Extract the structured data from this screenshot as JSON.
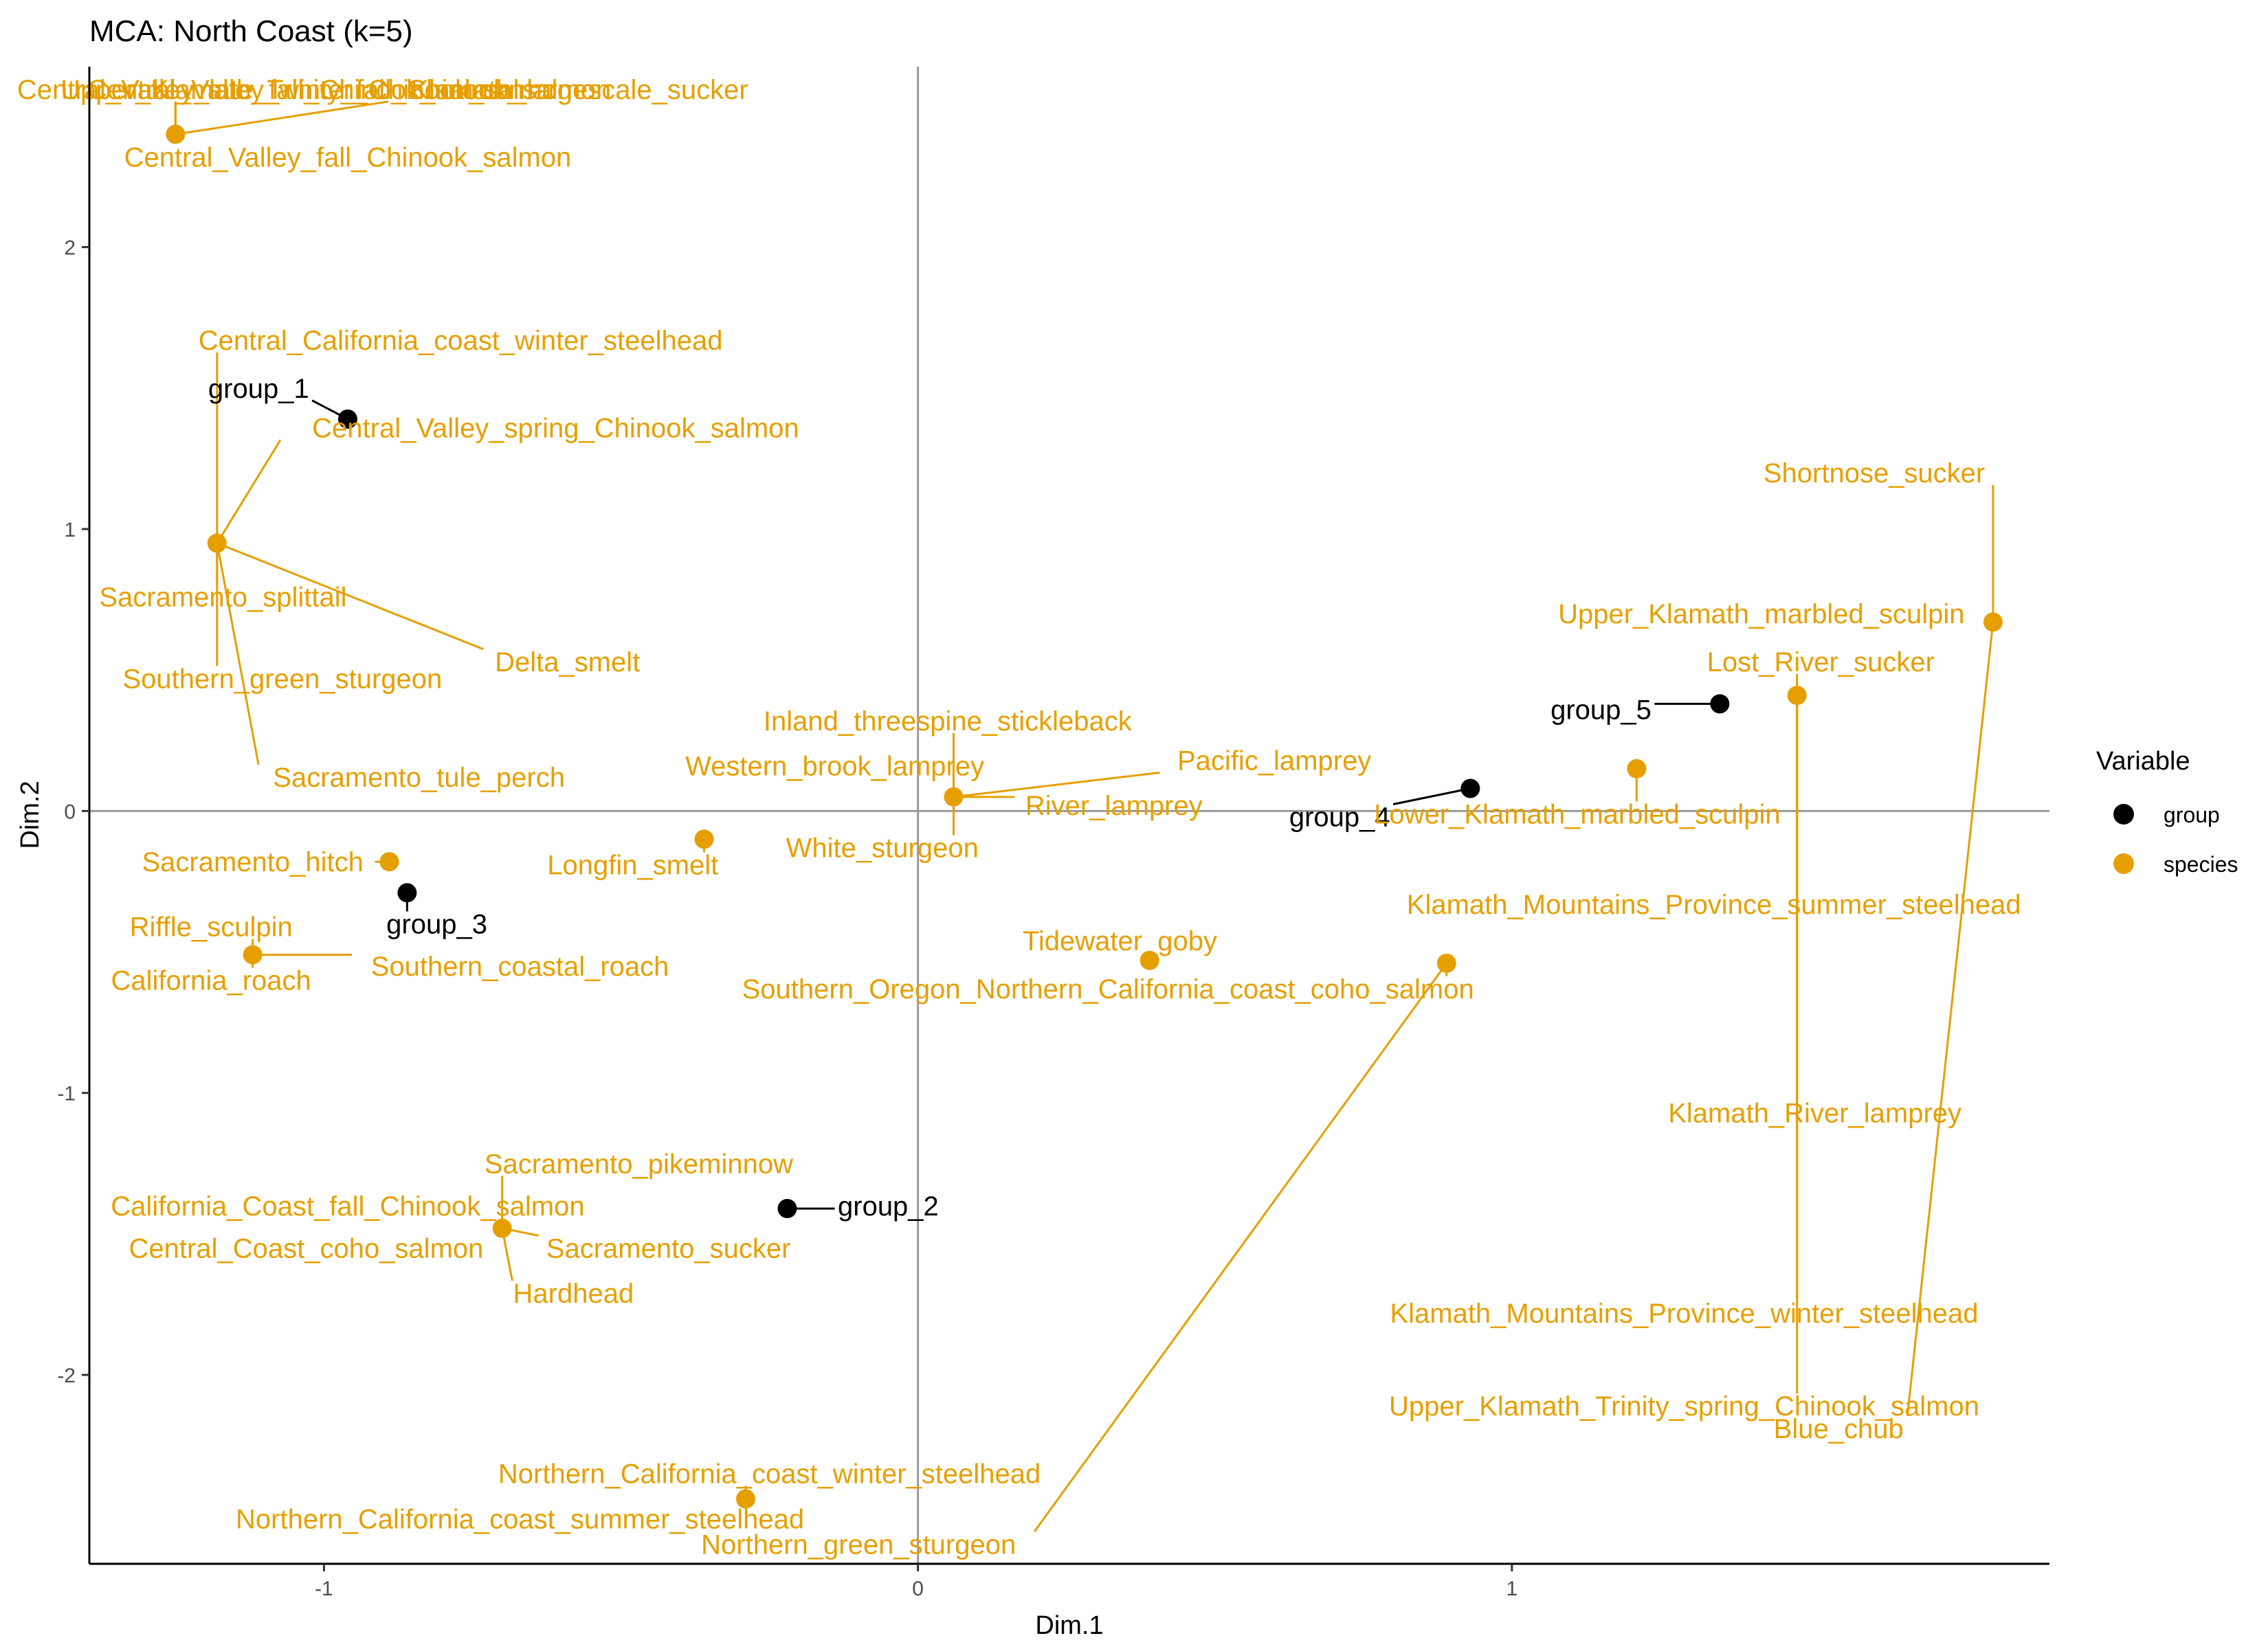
{
  "chart_data": {
    "type": "scatter",
    "title": "MCA: North Coast (k=5)",
    "xlabel": "Dim.1",
    "ylabel": "Dim.2",
    "xlim": [
      -1.395,
      1.905
    ],
    "ylim": [
      -2.67,
      2.64
    ],
    "x_ticks": [
      -1,
      0,
      1
    ],
    "x_tick_labels": [
      "-1",
      "0",
      "1"
    ],
    "y_ticks": [
      -2,
      -1,
      0,
      1,
      2
    ],
    "y_tick_labels": [
      "-2",
      "-1",
      "0",
      "1",
      "2"
    ],
    "reference_lines": {
      "x": 0,
      "y": 0
    },
    "grid": false,
    "legend": {
      "title": "Variable",
      "position": "right",
      "entries": [
        {
          "name": "group",
          "color": "#000000"
        },
        {
          "name": "species",
          "color": "#E69F00"
        }
      ]
    },
    "series": [
      {
        "name": "group",
        "color": "#000000",
        "points": [
          {
            "x": -0.96,
            "y": 1.39,
            "label": "group_1",
            "lx": -1.11,
            "ly": 1.5
          },
          {
            "x": -0.22,
            "y": -1.41,
            "label": "group_2",
            "lx": -0.05,
            "ly": -1.4
          },
          {
            "x": -0.86,
            "y": -0.29,
            "label": "group_3",
            "lx": -0.81,
            "ly": -0.4
          },
          {
            "x": 0.93,
            "y": 0.08,
            "label": "group_4",
            "lx": 0.71,
            "ly": -0.02
          },
          {
            "x": 1.35,
            "y": 0.38,
            "label": "group_5",
            "lx": 1.15,
            "ly": 0.36
          }
        ]
      },
      {
        "name": "species",
        "color": "#E69F00",
        "points": [
          {
            "x": -1.25,
            "y": 2.4,
            "label": "Central_Valley_fall_Chinook_salmon",
            "lx": -0.96,
            "ly": 2.32
          },
          {
            "x": -1.25,
            "y": 2.4,
            "label": "Central_Valley_late_fall_Chinook_salmon",
            "lx": -1.09,
            "ly": 2.56
          },
          {
            "x": -1.25,
            "y": 2.4,
            "label": "Upper_Klamath_Trinity_fall_Chinook_salmon",
            "lx": -0.98,
            "ly": 2.56
          },
          {
            "x": -1.25,
            "y": 2.4,
            "label": "Central_Valley_winter_Chinook_salmon",
            "lx": -0.99,
            "ly": 2.56
          },
          {
            "x": -1.25,
            "y": 2.4,
            "label": "Klamath_largescale_sucker",
            "lx": -0.57,
            "ly": 2.56
          },
          {
            "x": -1.18,
            "y": 0.95,
            "label": "Central_California_coast_winter_steelhead",
            "lx": -0.77,
            "ly": 1.67
          },
          {
            "x": -1.18,
            "y": 0.95,
            "label": "Central_Valley_spring_Chinook_salmon",
            "lx": -0.61,
            "ly": 1.36
          },
          {
            "x": -1.18,
            "y": 0.95,
            "label": "Sacramento_splittail",
            "lx": -1.17,
            "ly": 0.76
          },
          {
            "x": -1.18,
            "y": 0.95,
            "label": "Southern_green_sturgeon",
            "lx": -1.07,
            "ly": 0.47
          },
          {
            "x": -1.18,
            "y": 0.95,
            "label": "Delta_smelt",
            "lx": -0.59,
            "ly": 0.53
          },
          {
            "x": -1.18,
            "y": 0.95,
            "label": "Sacramento_tule_perch",
            "lx": -0.84,
            "ly": 0.12
          },
          {
            "x": 0.06,
            "y": 0.05,
            "label": "Inland_threespine_stickleback",
            "lx": 0.05,
            "ly": 0.32
          },
          {
            "x": 0.06,
            "y": 0.05,
            "label": "Western_brook_lamprey",
            "lx": -0.14,
            "ly": 0.16
          },
          {
            "x": 0.06,
            "y": 0.05,
            "label": "Pacific_lamprey",
            "lx": 0.6,
            "ly": 0.18
          },
          {
            "x": 0.06,
            "y": 0.05,
            "label": "River_lamprey",
            "lx": 0.33,
            "ly": 0.02
          },
          {
            "x": 0.06,
            "y": 0.05,
            "label": "White_sturgeon",
            "lx": -0.06,
            "ly": -0.13
          },
          {
            "x": -0.36,
            "y": -0.1,
            "label": "Longfin_smelt",
            "lx": -0.48,
            "ly": -0.19
          },
          {
            "x": -0.89,
            "y": -0.18,
            "label": "Sacramento_hitch",
            "lx": -1.12,
            "ly": -0.18
          },
          {
            "x": -1.12,
            "y": -0.51,
            "label": "Riffle_sculpin",
            "lx": -1.19,
            "ly": -0.41
          },
          {
            "x": -1.12,
            "y": -0.51,
            "label": "California_roach",
            "lx": -1.19,
            "ly": -0.6
          },
          {
            "x": -1.12,
            "y": -0.51,
            "label": "Southern_coastal_roach",
            "lx": -0.67,
            "ly": -0.55
          },
          {
            "x": 0.39,
            "y": -0.53,
            "label": "Tidewater_goby",
            "lx": 0.34,
            "ly": -0.46
          },
          {
            "x": 0.89,
            "y": -0.54,
            "label": "Southern_Oregon_Northern_California_coast_coho_salmon",
            "lx": 0.32,
            "ly": -0.63
          },
          {
            "x": 0.89,
            "y": -0.54,
            "label": "Northern_green_sturgeon",
            "lx": -0.1,
            "ly": -2.6
          },
          {
            "x": -0.29,
            "y": -2.44,
            "label": "Northern_California_coast_winter_steelhead",
            "lx": -0.25,
            "ly": -2.35
          },
          {
            "x": -0.29,
            "y": -2.44,
            "label": "Northern_California_coast_summer_steelhead",
            "lx": -0.67,
            "ly": -2.51
          },
          {
            "x": -0.7,
            "y": -1.48,
            "label": "Sacramento_pikeminnow",
            "lx": -0.47,
            "ly": -1.25
          },
          {
            "x": -0.7,
            "y": -1.48,
            "label": "California_Coast_fall_Chinook_salmon",
            "lx": -0.96,
            "ly": -1.4
          },
          {
            "x": -0.7,
            "y": -1.48,
            "label": "Central_Coast_coho_salmon",
            "lx": -1.03,
            "ly": -1.55
          },
          {
            "x": -0.7,
            "y": -1.48,
            "label": "Sacramento_sucker",
            "lx": -0.42,
            "ly": -1.55
          },
          {
            "x": -0.7,
            "y": -1.48,
            "label": "Hardhead",
            "lx": -0.58,
            "ly": -1.71
          },
          {
            "x": 1.21,
            "y": 0.15,
            "label": "Lower_Klamath_marbled_sculpin",
            "lx": 1.11,
            "ly": -0.01
          },
          {
            "x": 1.48,
            "y": 0.41,
            "label": "Lost_River_sucker",
            "lx": 1.52,
            "ly": 0.53
          },
          {
            "x": 1.48,
            "y": 0.41,
            "label": "Klamath_Mountains_Province_summer_steelhead",
            "lx": 1.34,
            "ly": -0.33
          },
          {
            "x": 1.48,
            "y": 0.41,
            "label": "Klamath_River_lamprey",
            "lx": 1.51,
            "ly": -1.07
          },
          {
            "x": 1.48,
            "y": 0.41,
            "label": "Klamath_Mountains_Province_winter_steelhead",
            "lx": 1.29,
            "ly": -1.78
          },
          {
            "x": 1.48,
            "y": 0.41,
            "label": "Upper_Klamath_Trinity_spring_Chinook_salmon",
            "lx": 1.29,
            "ly": -2.11
          },
          {
            "x": 1.81,
            "y": 0.67,
            "label": "Shortnose_sucker",
            "lx": 1.61,
            "ly": 1.2
          },
          {
            "x": 1.81,
            "y": 0.67,
            "label": "Upper_Klamath_marbled_sculpin",
            "lx": 1.42,
            "ly": 0.7
          },
          {
            "x": 1.81,
            "y": 0.67,
            "label": "Blue_chub",
            "lx": 1.55,
            "ly": -2.19
          }
        ]
      }
    ]
  }
}
